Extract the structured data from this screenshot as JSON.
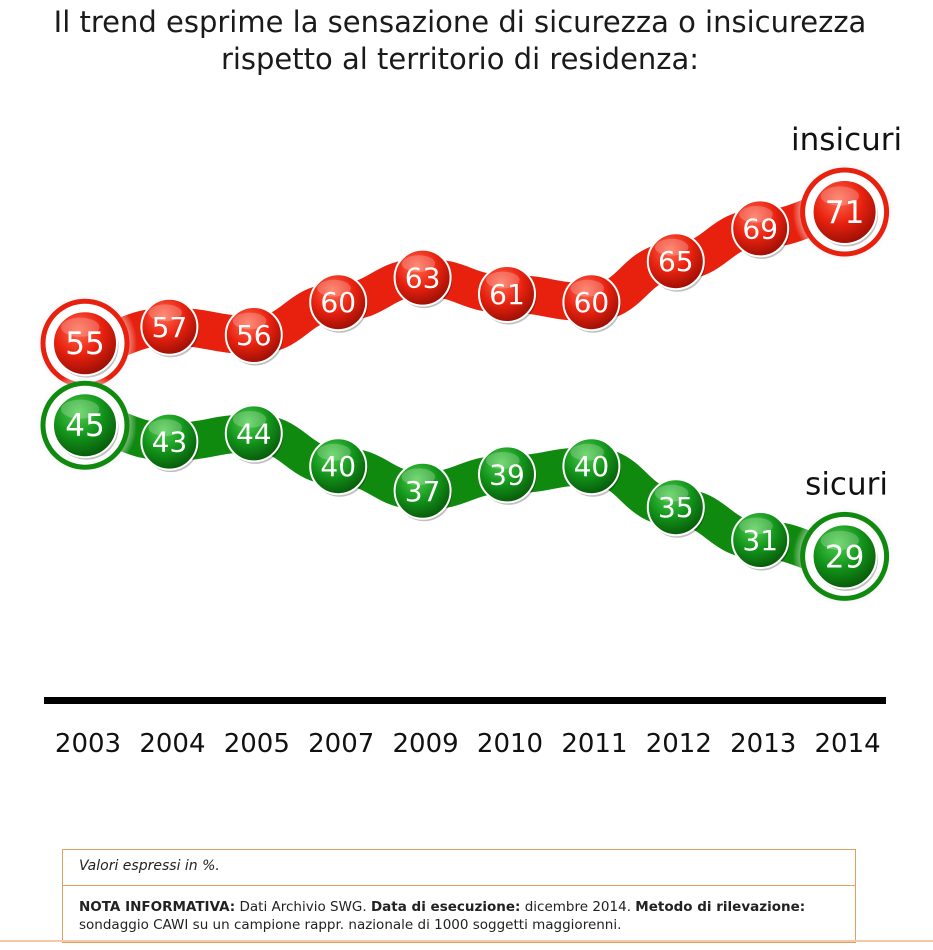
{
  "title": {
    "line1": "Il trend esprime la sensazione di sicurezza o insicurezza",
    "line2": "rispetto al territorio di residenza:"
  },
  "chart_data": {
    "type": "line",
    "categories": [
      "2003",
      "2004",
      "2005",
      "2007",
      "2009",
      "2010",
      "2011",
      "2012",
      "2013",
      "2014"
    ],
    "series": [
      {
        "name": "insicuri",
        "values": [
          55,
          57,
          56,
          60,
          63,
          61,
          60,
          65,
          69,
          71
        ],
        "color": "#e8210f",
        "highlight_color": "#ff5a40"
      },
      {
        "name": "sicuri",
        "values": [
          45,
          43,
          44,
          40,
          37,
          39,
          40,
          35,
          31,
          29
        ],
        "color": "#0f8a0f",
        "highlight_color": "#2fb82f"
      }
    ],
    "xlabel": "",
    "ylabel": "",
    "grid": false
  },
  "note": {
    "units": "Valori espressi in %.",
    "label1": "NOTA INFORMATIVA:",
    "text1": " Dati Archivio SWG. ",
    "label2": "Data di esecuzione:",
    "text2": " dicembre 2014. ",
    "label3": "Metodo di rilevazione:",
    "text3": " sondaggio CAWI su un campione rappr. nazionale di 1000 soggetti maggiorenni."
  }
}
